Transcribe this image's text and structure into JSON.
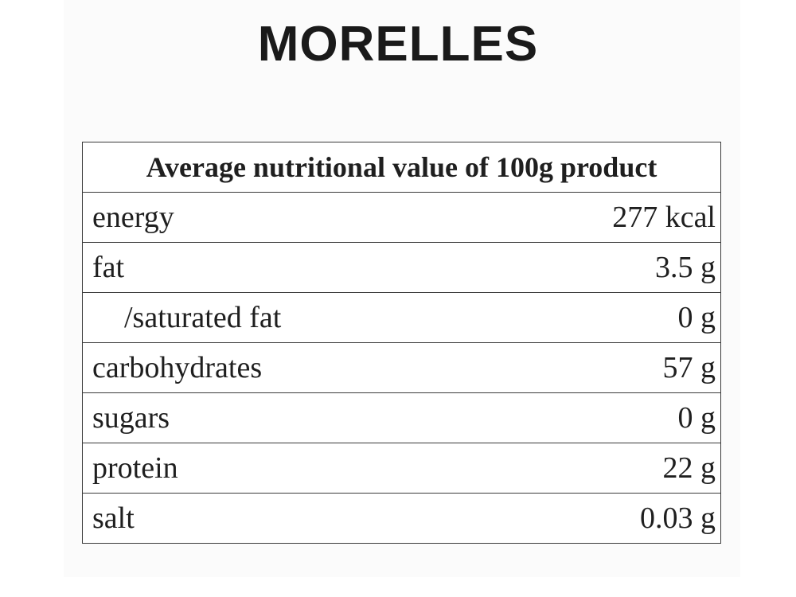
{
  "title": "MORELLES",
  "table": {
    "header": "Average nutritional value of 100g product",
    "rows": [
      {
        "name": "energy",
        "value": "277 kcal"
      },
      {
        "name": "fat",
        "value": "3.5 g"
      },
      {
        "name": "/saturated fat",
        "value": "0 g"
      },
      {
        "name": "carbohydrates",
        "value": "57 g"
      },
      {
        "name": "sugars",
        "value": "0 g"
      },
      {
        "name": "protein",
        "value": "22 g"
      },
      {
        "name": "salt",
        "value": "0.03 g"
      }
    ]
  }
}
